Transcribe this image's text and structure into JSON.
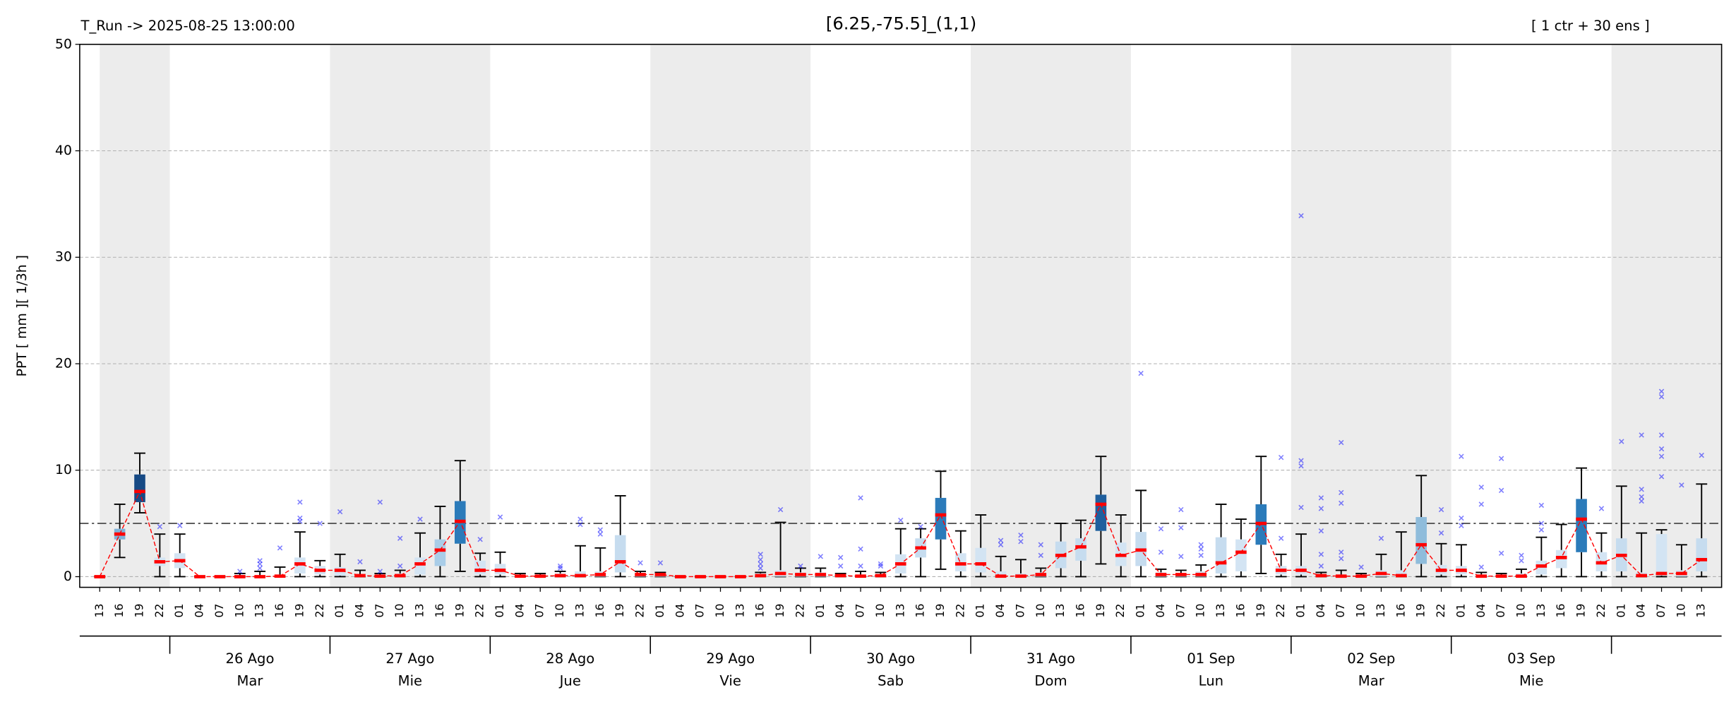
{
  "chart_data": {
    "type": "box",
    "title": "[6.25,-75.5]_(1,1)",
    "run_label": "T_Run -> 2025-08-25  13:00:00",
    "members_label": "[ 1 ctr + 30 ens ]",
    "y_label": "PPT  [ mm ][ 1/3h ]",
    "categories": [
      "13",
      "16",
      "19",
      "22",
      "01",
      "04",
      "07",
      "10",
      "13",
      "16",
      "19",
      "22",
      "01",
      "04",
      "07",
      "10",
      "13",
      "16",
      "19",
      "22",
      "01",
      "04",
      "07",
      "10",
      "13",
      "16",
      "19",
      "22",
      "01",
      "04",
      "07",
      "10",
      "13",
      "16",
      "19",
      "22",
      "01",
      "04",
      "07",
      "10",
      "13",
      "16",
      "19",
      "22",
      "01",
      "04",
      "07",
      "10",
      "13",
      "16",
      "19",
      "22",
      "01",
      "04",
      "07",
      "10",
      "13",
      "16",
      "19",
      "22",
      "01",
      "04",
      "07",
      "10",
      "13",
      "16",
      "19",
      "22",
      "01",
      "04",
      "07",
      "10",
      "13",
      "16",
      "19",
      "22",
      "01",
      "04",
      "07",
      "10",
      "13"
    ],
    "days": [
      {
        "date": "26 Ago",
        "weekday": "Mar"
      },
      {
        "date": "27 Ago",
        "weekday": "Mie"
      },
      {
        "date": "28 Ago",
        "weekday": "Jue"
      },
      {
        "date": "29 Ago",
        "weekday": "Vie"
      },
      {
        "date": "30 Ago",
        "weekday": "Sab"
      },
      {
        "date": "31 Ago",
        "weekday": "Dom"
      },
      {
        "date": "01 Sep",
        "weekday": "Lun"
      },
      {
        "date": "02 Sep",
        "weekday": "Mar"
      },
      {
        "date": "03 Sep",
        "weekday": "Mie"
      }
    ],
    "median": [
      0,
      4.0,
      8.0,
      1.4,
      1.5,
      0,
      0,
      0,
      0,
      0.05,
      1.2,
      0.6,
      0.6,
      0.1,
      0.05,
      0.1,
      1.2,
      2.5,
      5.2,
      0.6,
      0.6,
      0.05,
      0.05,
      0.1,
      0.1,
      0.2,
      1.4,
      0.2,
      0.2,
      0,
      0,
      0,
      0,
      0.1,
      0.3,
      0.2,
      0.2,
      0.1,
      0.05,
      0.1,
      1.2,
      2.7,
      5.8,
      1.2,
      1.2,
      0.05,
      0.05,
      0.2,
      2.0,
      2.8,
      6.8,
      2.0,
      2.5,
      0.2,
      0.2,
      0.2,
      1.3,
      2.3,
      5.0,
      0.6,
      0.6,
      0.1,
      0.05,
      0.05,
      0.3,
      0.1,
      3.0,
      0.6,
      0.6,
      0.05,
      0.05,
      0.05,
      1.0,
      1.8,
      5.4,
      1.3,
      2.0,
      0.1,
      0.3,
      0.3,
      1.6
    ],
    "q1": [
      0,
      3.5,
      7.0,
      1.0,
      0.8,
      0,
      0,
      0,
      0,
      0,
      0.3,
      0.2,
      0.1,
      0,
      0,
      0,
      0.2,
      1.0,
      3.1,
      0.2,
      0.2,
      0,
      0,
      0,
      0,
      0,
      0.4,
      0,
      0,
      0,
      0,
      0,
      0,
      0,
      0,
      0,
      0,
      0,
      0,
      0,
      0.3,
      1.8,
      3.5,
      0.5,
      0.4,
      0,
      0,
      0,
      0.8,
      1.5,
      4.3,
      1.0,
      1.0,
      0,
      0,
      0,
      0.3,
      0.5,
      3.0,
      0.2,
      0.2,
      0,
      0,
      0,
      0,
      0,
      1.2,
      0.2,
      0.2,
      0,
      0,
      0,
      0.2,
      0.8,
      2.3,
      0.5,
      0.5,
      0,
      0.1,
      0,
      0.5
    ],
    "q3": [
      0,
      4.5,
      9.6,
      1.8,
      2.2,
      0,
      0,
      0,
      0.1,
      0.2,
      1.8,
      1.0,
      0.9,
      0.2,
      0.1,
      0.3,
      1.8,
      3.5,
      7.1,
      1.5,
      1.2,
      0.1,
      0.1,
      0.3,
      0.5,
      0.5,
      3.9,
      0.3,
      0.3,
      0,
      0,
      0,
      0,
      0.3,
      0.6,
      0.4,
      0.4,
      0.2,
      0.2,
      0.2,
      2.1,
      3.6,
      7.4,
      2.2,
      2.7,
      0.5,
      0.3,
      0.4,
      3.3,
      3.6,
      7.7,
      3.2,
      4.2,
      0.4,
      0.3,
      0.5,
      3.7,
      3.5,
      6.8,
      1.0,
      1.0,
      0.2,
      0.2,
      0.1,
      0.6,
      0.6,
      5.6,
      1.1,
      1.0,
      0.2,
      0.2,
      0.3,
      1.5,
      2.5,
      7.3,
      2.3,
      3.6,
      0.4,
      4.0,
      0.6,
      3.6
    ],
    "whislo": [
      0,
      1.8,
      6.0,
      0,
      0,
      0,
      0,
      0,
      0,
      0,
      0,
      0,
      0,
      0,
      0,
      0,
      0,
      0,
      0.5,
      0,
      0,
      0,
      0,
      0,
      0,
      0,
      0,
      0,
      0,
      0,
      0,
      0,
      0,
      0,
      0,
      0,
      0,
      0,
      0,
      0,
      0,
      0,
      0.7,
      0,
      0,
      0,
      0,
      0,
      0,
      0,
      1.2,
      0,
      0,
      0,
      0,
      0,
      0,
      0,
      0.3,
      0,
      0,
      0,
      0,
      0,
      0,
      0,
      0,
      0,
      0,
      0,
      0,
      0,
      0,
      0,
      0,
      0,
      0,
      0,
      0,
      0,
      0
    ],
    "whishi": [
      0,
      6.8,
      11.6,
      4.0,
      4.0,
      0,
      0,
      0.3,
      0.5,
      0.9,
      4.2,
      1.5,
      2.1,
      0.6,
      0.3,
      0.6,
      4.1,
      6.6,
      10.9,
      2.2,
      2.3,
      0.3,
      0.3,
      0.5,
      2.9,
      2.7,
      7.6,
      0.5,
      0.4,
      0,
      0,
      0,
      0,
      0.4,
      5.1,
      0.8,
      0.8,
      0.3,
      0.5,
      0.4,
      4.5,
      4.5,
      9.9,
      4.3,
      5.8,
      1.9,
      1.6,
      0.8,
      5.0,
      5.3,
      11.3,
      5.8,
      8.1,
      0.7,
      0.6,
      1.1,
      6.8,
      5.4,
      11.3,
      2.1,
      4.0,
      0.4,
      0.6,
      0.3,
      2.1,
      4.2,
      9.5,
      3.1,
      3.0,
      0.4,
      0.3,
      0.7,
      3.7,
      4.9,
      10.2,
      4.1,
      8.5,
      4.1,
      4.4,
      3.0,
      8.7
    ],
    "fliers": [
      [],
      [],
      [],
      [
        4.7
      ],
      [
        4.8
      ],
      [],
      [],
      [
        0.5
      ],
      [
        0.8,
        1.2,
        1.5
      ],
      [
        2.7
      ],
      [
        5.2,
        5.5,
        7.0
      ],
      [
        5.0
      ],
      [
        6.1
      ],
      [
        1.4
      ],
      [
        0.5,
        7.0
      ],
      [
        1.0,
        3.6
      ],
      [
        5.4
      ],
      [],
      [],
      [
        3.5
      ],
      [
        5.6
      ],
      [],
      [],
      [
        0.8,
        1.0
      ],
      [
        4.9,
        5.4
      ],
      [
        4.0,
        4.4
      ],
      [],
      [
        1.3
      ],
      [
        1.3
      ],
      [],
      [],
      [],
      [],
      [
        0.8,
        1.2,
        1.6,
        2.1
      ],
      [
        6.3
      ],
      [
        1.0
      ],
      [
        1.9
      ],
      [
        1.0,
        1.8
      ],
      [
        1.0,
        2.6,
        7.4
      ],
      [
        1.0,
        1.2
      ],
      [
        5.3
      ],
      [
        4.7
      ],
      [],
      [],
      [],
      [
        3.0,
        3.4
      ],
      [
        3.3,
        3.9
      ],
      [
        2.0,
        3.0
      ],
      [],
      [],
      [],
      [],
      [
        19.1
      ],
      [
        2.3,
        4.5
      ],
      [
        1.9,
        4.6,
        6.3
      ],
      [
        2.0,
        2.6,
        3.0
      ],
      [],
      [],
      [],
      [
        3.6,
        11.2
      ],
      [
        6.5,
        10.4,
        10.9,
        33.9
      ],
      [
        1.0,
        2.1,
        4.3,
        6.4,
        7.4
      ],
      [
        1.7,
        2.3,
        6.9,
        7.9,
        12.6
      ],
      [
        0.9
      ],
      [
        3.6
      ],
      [],
      [],
      [
        4.1,
        6.3
      ],
      [
        4.8,
        5.5,
        11.3
      ],
      [
        0.9,
        6.8,
        8.4
      ],
      [
        2.2,
        8.1,
        11.1
      ],
      [
        1.5,
        2.0
      ],
      [
        4.4,
        5.0,
        6.7
      ],
      [],
      [],
      [
        6.4
      ],
      [
        12.7
      ],
      [
        7.1,
        7.5,
        8.2,
        13.3
      ],
      [
        9.4,
        11.3,
        12.0,
        13.3,
        16.9,
        17.4
      ],
      [
        8.6
      ],
      [
        11.4
      ]
    ],
    "box_colors": [
      "#d3e4f3",
      "#7fb2d8",
      "#174a85",
      "#d3e4f3",
      "#d3e4f3",
      "#d3e4f3",
      "#d3e4f3",
      "#d3e4f3",
      "#d3e4f3",
      "#d3e4f3",
      "#d3e4f3",
      "#d3e4f3",
      "#d3e4f3",
      "#d3e4f3",
      "#d3e4f3",
      "#d3e4f3",
      "#d3e4f3",
      "#a9cde8",
      "#2b7bba",
      "#d3e4f3",
      "#d3e4f3",
      "#d3e4f3",
      "#d3e4f3",
      "#d3e4f3",
      "#d3e4f3",
      "#d3e4f3",
      "#c6dcef",
      "#d3e4f3",
      "#d3e4f3",
      "#d3e4f3",
      "#d3e4f3",
      "#d3e4f3",
      "#d3e4f3",
      "#d3e4f3",
      "#d3e4f3",
      "#d3e4f3",
      "#d3e4f3",
      "#d3e4f3",
      "#d3e4f3",
      "#d3e4f3",
      "#d3e4f3",
      "#c6dcef",
      "#2b7bba",
      "#d3e4f3",
      "#d3e4f3",
      "#d3e4f3",
      "#d3e4f3",
      "#d3e4f3",
      "#c6dcef",
      "#c6dcef",
      "#1f5f9e",
      "#d3e4f3",
      "#c6dcef",
      "#d3e4f3",
      "#d3e4f3",
      "#d3e4f3",
      "#c6dcef",
      "#d3e4f3",
      "#2b7bba",
      "#d3e4f3",
      "#d3e4f3",
      "#d3e4f3",
      "#d3e4f3",
      "#d3e4f3",
      "#d3e4f3",
      "#d3e4f3",
      "#8fbcdb",
      "#d3e4f3",
      "#d3e4f3",
      "#d3e4f3",
      "#d3e4f3",
      "#d3e4f3",
      "#d3e4f3",
      "#d3e4f3",
      "#2b7bba",
      "#d3e4f3",
      "#c6dcef",
      "#d3e4f3",
      "#d3e4f3",
      "#d3e4f3",
      "#c6dcef"
    ],
    "median_color": "#ff0000",
    "flier_color": "#0000ff",
    "header_color": "#ff0000",
    "shade_color": "#ececec",
    "threshold": 5,
    "threshold_color": "#555555",
    "ylim": [
      -1,
      50
    ],
    "yticks": [
      0,
      10,
      20,
      30,
      40,
      50
    ],
    "grid": true
  }
}
